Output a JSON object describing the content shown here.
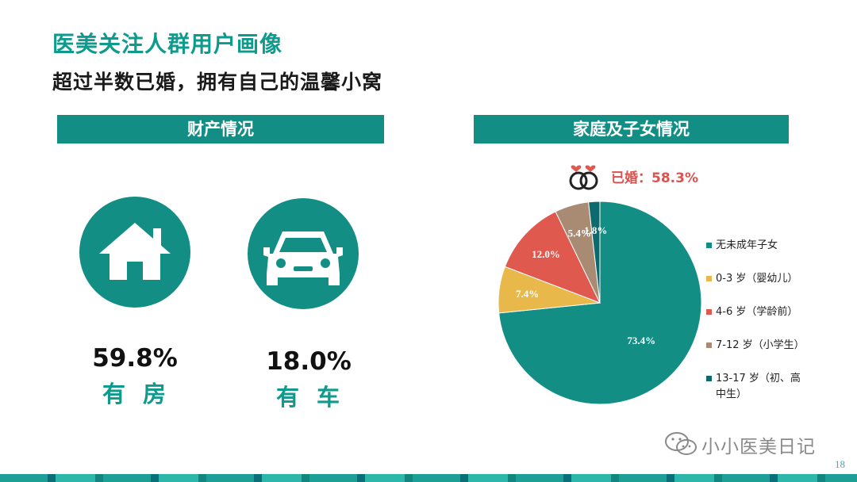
{
  "title": "医美关注人群用户画像",
  "subtitle": "超过半数已婚，拥有自己的温馨小窝",
  "sections": {
    "assets": "财产情况",
    "family": "家庭及子女情况"
  },
  "stats": {
    "house": {
      "value": "59.8%",
      "label": "有房",
      "icon": "house-icon"
    },
    "car": {
      "value": "18.0%",
      "label": "有车",
      "icon": "car-icon"
    }
  },
  "married": {
    "label": "已婚：58.3%",
    "icon": "rings-icon"
  },
  "colors": {
    "teal": "#138e84",
    "title_teal": "#0e9a8c",
    "married_red": "#d9534f"
  },
  "chart_data": {
    "type": "pie",
    "title": "",
    "labels": [
      "无未成年子女",
      "0-3 岁（婴幼儿）",
      "4-6 岁（学龄前）",
      "7-12 岁（小学生）",
      "13-17 岁（初、高中生）"
    ],
    "values": [
      73.4,
      7.4,
      12.0,
      5.4,
      1.8
    ],
    "value_labels": [
      "73.4%",
      "7.4%",
      "12.0%",
      "5.4%",
      "1.8%"
    ],
    "colors": [
      "#138e84",
      "#e8b84a",
      "#e0594f",
      "#a88b72",
      "#0f6a6e"
    ],
    "legend_placement": "right"
  },
  "watermark": "小小医美日记",
  "page_number": "18"
}
